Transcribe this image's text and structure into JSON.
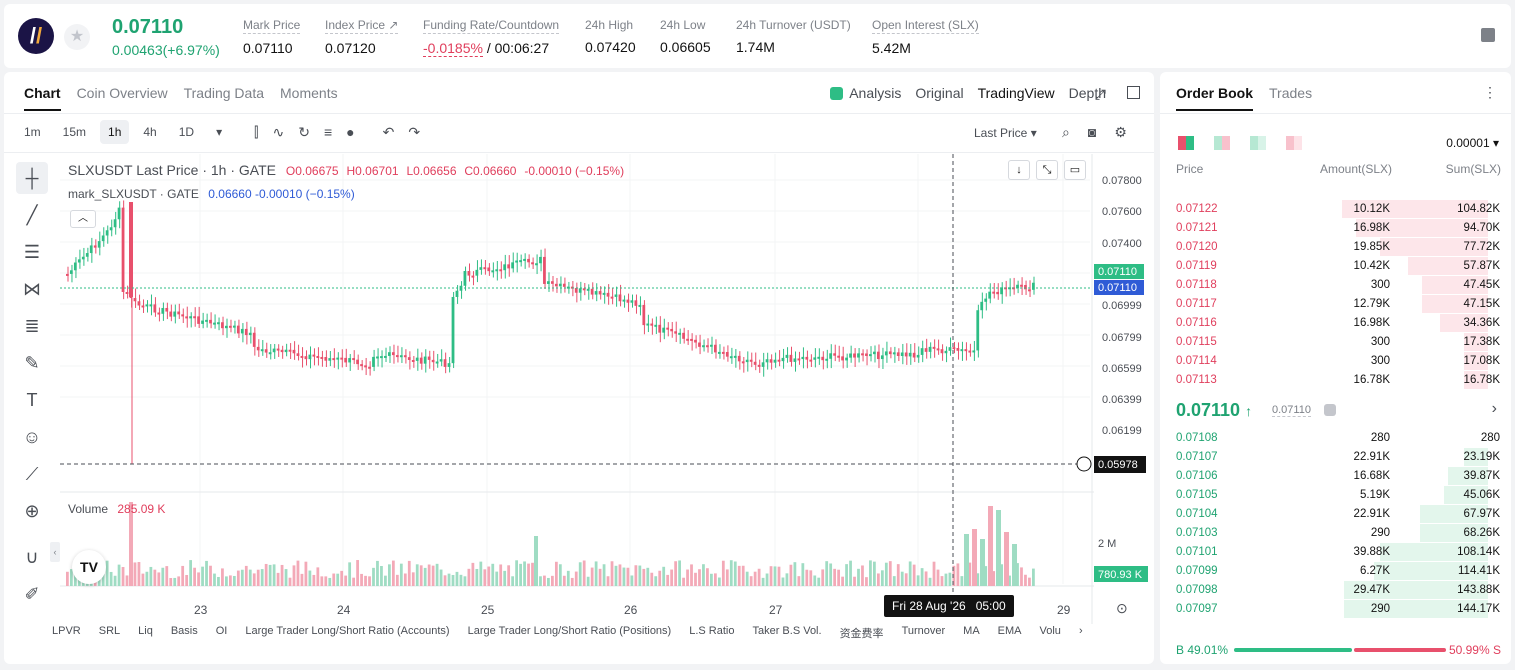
{
  "ticker": {
    "price": "0.07110",
    "change": "0.00463(+6.97%)",
    "stats": [
      {
        "label": "Mark Price",
        "value": "0.07110"
      },
      {
        "label": "Index Price ↗",
        "value": "0.07120"
      },
      {
        "label": "Funding Rate/Countdown",
        "value_red": "-0.0185%",
        "value_rest": " / 00:06:27"
      },
      {
        "label": "24h High",
        "value": "0.07420"
      },
      {
        "label": "24h Low",
        "value": "0.06605"
      },
      {
        "label": "24h Turnover (USDT)",
        "value": "1.74M"
      },
      {
        "label": "Open Interest (SLX)",
        "value": "5.42M"
      }
    ]
  },
  "chart_panel": {
    "tabs": [
      "Chart",
      "Coin Overview",
      "Trading Data",
      "Moments"
    ],
    "right_tabs": [
      "Analysis",
      "Original",
      "TradingView",
      "Depth"
    ],
    "timeframes": [
      "1m",
      "15m",
      "1h",
      "4h",
      "1D"
    ],
    "price_source": "Last Price",
    "legend_line1": "SLXUSDT Last Price · 1h · GATE",
    "ohlc": {
      "o": "O0.06675",
      "h": "H0.06701",
      "l": "L0.06656",
      "c": "C0.06660",
      "chg": "-0.00010 (−0.15%)"
    },
    "legend_line2_label": "mark_SLXUSDT · GATE",
    "legend_line2_val": "0.06660  -0.00010 (−0.15%)",
    "volume_label": "Volume",
    "volume_value": "285.09 K",
    "crosshair_date": "Fri 28 Aug '26",
    "crosshair_time": "05:00",
    "indicators": [
      "LPVR",
      "SRL",
      "Liq",
      "Basis",
      "OI",
      "Large Trader Long/Short Ratio (Accounts)",
      "Large Trader Long/Short Ratio (Positions)",
      "L.S Ratio",
      "Taker B.S Vol.",
      "资金费率",
      "Turnover",
      "MA",
      "EMA",
      "Volu"
    ]
  },
  "chart_data": {
    "type": "candlestick",
    "yaxis_ticks": [
      "0.07800",
      "0.07600",
      "0.07400",
      "0.06999",
      "0.06799",
      "0.06599",
      "0.06399",
      "0.06199"
    ],
    "xaxis_ticks": [
      "23",
      "24",
      "25",
      "26",
      "27",
      "29"
    ],
    "price_labels": {
      "last": "0.07110",
      "mark": "0.07110",
      "crosshair": "0.05978",
      "volume_axis": "2 M",
      "volume_last": "780.93 K"
    },
    "colors": {
      "up": "#2ebd85",
      "down": "#e8506c",
      "mark": "#2f5bd6"
    }
  },
  "order_book": {
    "tabs": [
      "Order Book",
      "Trades"
    ],
    "precision": "0.00001",
    "headers": [
      "Price",
      "Amount(SLX)",
      "Sum(SLX)"
    ],
    "asks": [
      [
        "0.07122",
        "10.12K",
        "104.82K",
        0.73
      ],
      [
        "0.07121",
        "16.98K",
        "94.70K",
        0.66
      ],
      [
        "0.07120",
        "19.85K",
        "77.72K",
        0.54
      ],
      [
        "0.07119",
        "10.42K",
        "57.87K",
        0.4
      ],
      [
        "0.07118",
        "300",
        "47.45K",
        0.33
      ],
      [
        "0.07117",
        "12.79K",
        "47.15K",
        0.33
      ],
      [
        "0.07116",
        "16.98K",
        "34.36K",
        0.24
      ],
      [
        "0.07115",
        "300",
        "17.38K",
        0.12
      ],
      [
        "0.07114",
        "300",
        "17.08K",
        0.12
      ],
      [
        "0.07113",
        "16.78K",
        "16.78K",
        0.12
      ]
    ],
    "mid_price": "0.07110",
    "mid_mark": "0.07110",
    "bids": [
      [
        "0.07108",
        "280",
        "280",
        0.0
      ],
      [
        "0.07107",
        "22.91K",
        "23.19K",
        0.12
      ],
      [
        "0.07106",
        "16.68K",
        "39.87K",
        0.2
      ],
      [
        "0.07105",
        "5.19K",
        "45.06K",
        0.22
      ],
      [
        "0.07104",
        "22.91K",
        "67.97K",
        0.34
      ],
      [
        "0.07103",
        "290",
        "68.26K",
        0.34
      ],
      [
        "0.07101",
        "39.88K",
        "108.14K",
        0.54
      ],
      [
        "0.07099",
        "6.27K",
        "114.41K",
        0.57
      ],
      [
        "0.07098",
        "29.47K",
        "143.88K",
        0.72
      ],
      [
        "0.07097",
        "290",
        "144.17K",
        0.72
      ]
    ],
    "buy_ratio": "B 49.01%",
    "sell_ratio": "50.99% S"
  }
}
